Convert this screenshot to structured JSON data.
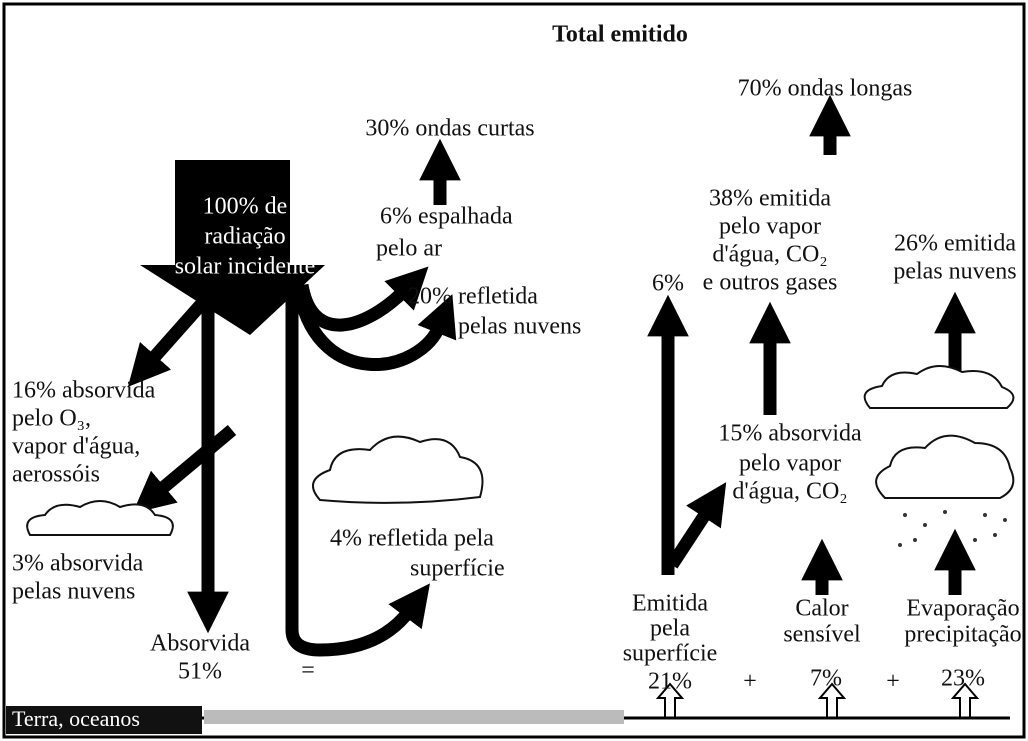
{
  "title": "Total emitido",
  "longwave": "70% ondas longas",
  "shortwave": "30% ondas curtas",
  "incident": [
    "100% de",
    "radiação",
    "solar incidente"
  ],
  "scattered": [
    "6% espalhada",
    "pelo ar"
  ],
  "cloud_reflected": [
    "20% refletida",
    "pelas nuvens"
  ],
  "ozone_absorbed": [
    "16% absorvida",
    "pelo O₃,",
    "vapor d'água,",
    "aerossóis"
  ],
  "cloud_absorbed": [
    "3% absorvida",
    "pelas nuvens"
  ],
  "surface_reflected": [
    "4% refletida pela",
    "superfície"
  ],
  "absorbed": [
    "Absorvida",
    "51%"
  ],
  "equals": "=",
  "gas_emitted": [
    "38% emitida",
    "pelo vapor",
    "d'água, CO₂",
    "e outros gases"
  ],
  "cloud_emitted": [
    "26% emitida",
    "pelas nuvens"
  ],
  "direct": "6%",
  "gas_absorbed": [
    "15% absorvida",
    "pelo vapor",
    "d'água, CO₂"
  ],
  "surface_emitted": [
    "Emitida",
    "pela",
    "superfície",
    "21%"
  ],
  "plus_1": "+",
  "sensible": [
    "Calor",
    "sensível",
    "7%"
  ],
  "plus_2": "+",
  "evaporation": [
    "Evaporação",
    "precipitação",
    "23%"
  ],
  "ground": "Terra, oceanos"
}
